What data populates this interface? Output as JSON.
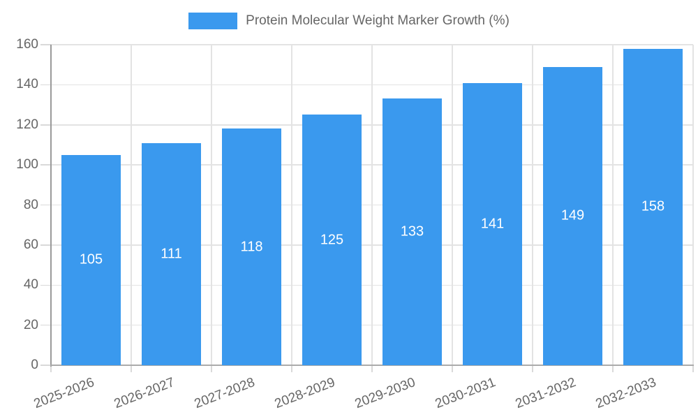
{
  "chart_data": {
    "type": "bar",
    "title": "Protein Molecular Weight Marker Growth (%)",
    "legend": {
      "position": "top",
      "entries": [
        {
          "label": "Protein Molecular Weight Marker Growth (%)",
          "color": "#3a99ee"
        }
      ]
    },
    "categories": [
      "2025-2026",
      "2026-2027",
      "2027-2028",
      "2028-2029",
      "2029-2030",
      "2030-2031",
      "2031-2032",
      "2032-2033"
    ],
    "series": [
      {
        "name": "Protein Molecular Weight Marker Growth (%)",
        "values": [
          105,
          111,
          118,
          125,
          133,
          141,
          149,
          158
        ]
      }
    ],
    "value_labels": [
      "105",
      "111",
      "118",
      "125",
      "133",
      "141",
      "149",
      "158"
    ],
    "y_tick_labels": [
      "0",
      "20",
      "40",
      "60",
      "80",
      "100",
      "120",
      "140",
      "160"
    ],
    "xlabel": "",
    "ylabel": "",
    "ylim": [
      0,
      160
    ],
    "ytick_step": 20,
    "grid": "on",
    "x_label_rotation_deg": -21,
    "colors": {
      "bar": "#3a99ee",
      "bar_value_text": "#ffffff",
      "axis_text": "#666666",
      "grid_line": "#e3e3e3",
      "tick_mark": "#d9d9d9",
      "y_axis_line": "#9a9a9a",
      "x_axis_line": "#ababab",
      "background": "#ffffff"
    }
  }
}
